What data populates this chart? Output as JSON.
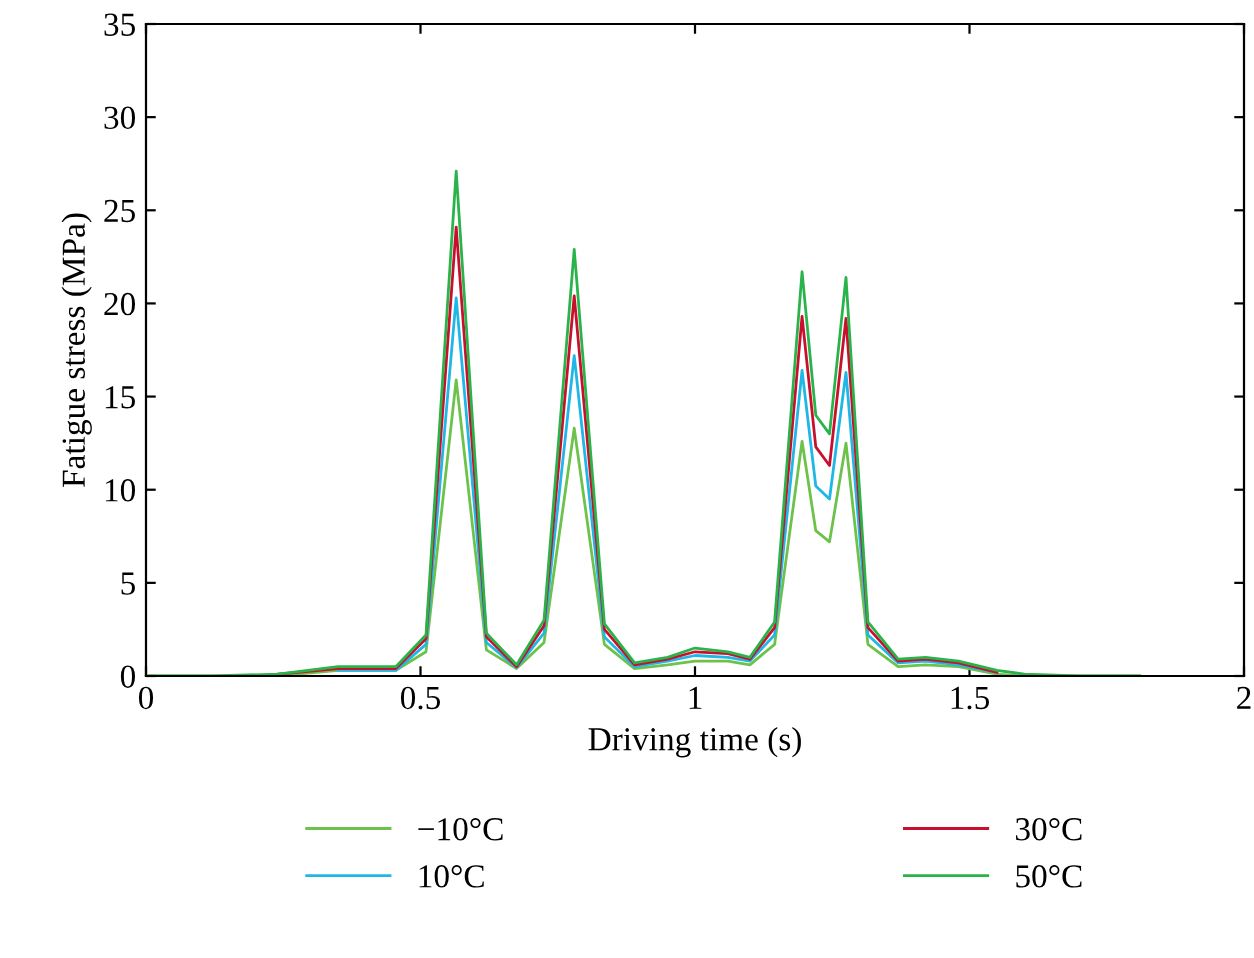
{
  "chart_data": {
    "type": "line",
    "xlabel": "Driving time (s)",
    "ylabel": "Fatigue stress (MPa)",
    "x": [
      0,
      0.12,
      0.24,
      0.35,
      0.455,
      0.51,
      0.565,
      0.62,
      0.675,
      0.725,
      0.78,
      0.835,
      0.89,
      0.95,
      1.0,
      1.06,
      1.1,
      1.145,
      1.195,
      1.22,
      1.245,
      1.275,
      1.315,
      1.37,
      1.42,
      1.48,
      1.55,
      1.6,
      1.7,
      1.81
    ],
    "series": [
      {
        "name": "−10°C",
        "color": "#6cc24a",
        "values": [
          0,
          0,
          0,
          0.3,
          0.3,
          1.3,
          15.9,
          1.4,
          0.4,
          1.8,
          13.3,
          1.7,
          0.4,
          0.6,
          0.8,
          0.8,
          0.6,
          1.7,
          12.6,
          7.8,
          7.2,
          12.5,
          1.7,
          0.5,
          0.6,
          0.5,
          0.1,
          0,
          0,
          0
        ]
      },
      {
        "name": "10°C",
        "color": "#1fb7e6",
        "values": [
          null,
          null,
          null,
          0.3,
          0.3,
          1.7,
          20.3,
          1.8,
          0.45,
          2.3,
          17.2,
          2.1,
          0.5,
          0.8,
          1.1,
          1.0,
          0.8,
          2.2,
          16.4,
          10.2,
          9.5,
          16.3,
          2.2,
          0.7,
          0.8,
          0.6,
          0.2,
          null,
          null,
          null
        ]
      },
      {
        "name": "30°C",
        "color": "#c8102e",
        "values": [
          null,
          null,
          0.1,
          0.4,
          0.4,
          2.0,
          24.1,
          2.1,
          0.5,
          2.7,
          20.4,
          2.5,
          0.6,
          0.9,
          1.3,
          1.2,
          0.9,
          2.6,
          19.3,
          12.3,
          11.3,
          19.2,
          2.6,
          0.8,
          0.9,
          0.7,
          0.2,
          null,
          null,
          null
        ]
      },
      {
        "name": "50°C",
        "color": "#2ab34a",
        "values": [
          0,
          0,
          0.1,
          0.5,
          0.5,
          2.2,
          27.1,
          2.3,
          0.6,
          3.0,
          22.9,
          2.8,
          0.7,
          1.0,
          1.5,
          1.3,
          1.0,
          2.9,
          21.7,
          14.0,
          13.0,
          21.4,
          2.9,
          0.9,
          1.0,
          0.8,
          0.3,
          0.1,
          0,
          0
        ]
      }
    ],
    "xlim": [
      0,
      2
    ],
    "xticks": [
      0,
      0.5,
      1,
      1.5,
      2
    ],
    "ylim": [
      0,
      35
    ],
    "yticks": [
      0,
      5,
      10,
      15,
      20,
      25,
      30,
      35
    ],
    "grid": false,
    "legend": "bottom",
    "marker": "none",
    "line_style": "solid"
  }
}
